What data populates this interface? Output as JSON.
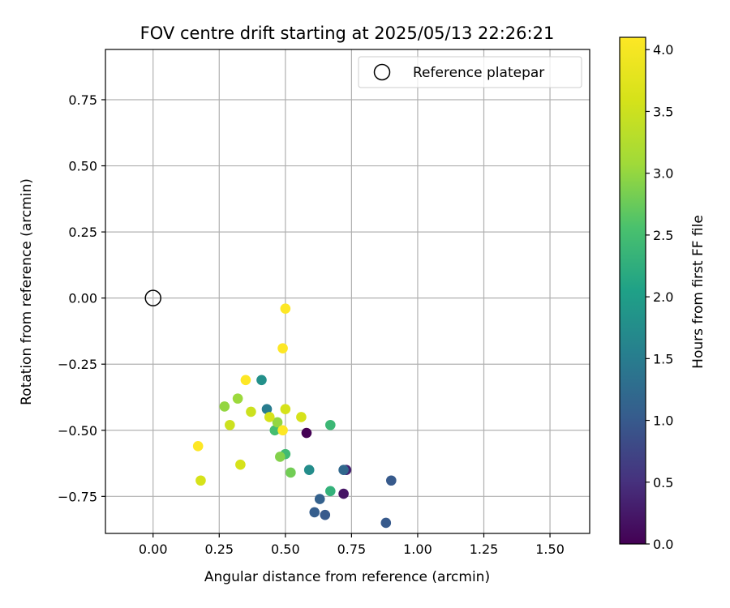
{
  "chart_data": {
    "type": "scatter",
    "title": "FOV centre drift starting at 2025/05/13 22:26:21",
    "xlabel": "Angular distance from reference (arcmin)",
    "ylabel": "Rotation from reference (arcmin)",
    "xlim": [
      -0.18,
      1.65
    ],
    "ylim": [
      -0.89,
      0.94
    ],
    "x_ticks": [
      "0.00",
      "0.25",
      "0.50",
      "0.75",
      "1.00",
      "1.25",
      "1.50"
    ],
    "y_ticks": [
      "0.75",
      "0.50",
      "0.25",
      "0.00",
      "−0.25",
      "−0.50",
      "−0.75"
    ],
    "grid": true,
    "legend": {
      "placement": "top-right",
      "entries": [
        "Reference platepar"
      ]
    },
    "reference": {
      "x": 0.0,
      "y": 0.0,
      "marker": "open-circle"
    },
    "colorbar": {
      "label": "Hours from first FF file",
      "colormap": "viridis",
      "range": [
        0.0,
        4.1
      ],
      "ticks": [
        "0.0",
        "0.5",
        "1.0",
        "1.5",
        "2.0",
        "2.5",
        "3.0",
        "3.5",
        "4.0"
      ]
    },
    "points": [
      {
        "x": 0.58,
        "y": -0.51,
        "t": 0.0
      },
      {
        "x": 0.72,
        "y": -0.74,
        "t": 0.2
      },
      {
        "x": 0.73,
        "y": -0.65,
        "t": 0.35
      },
      {
        "x": 0.65,
        "y": -0.82,
        "t": 1.0
      },
      {
        "x": 0.61,
        "y": -0.81,
        "t": 1.05
      },
      {
        "x": 0.63,
        "y": -0.76,
        "t": 1.1
      },
      {
        "x": 0.88,
        "y": -0.85,
        "t": 1.0
      },
      {
        "x": 0.9,
        "y": -0.69,
        "t": 1.0
      },
      {
        "x": 0.72,
        "y": -0.65,
        "t": 1.2
      },
      {
        "x": 0.43,
        "y": -0.42,
        "t": 1.5
      },
      {
        "x": 0.59,
        "y": -0.65,
        "t": 1.75
      },
      {
        "x": 0.41,
        "y": -0.31,
        "t": 1.8
      },
      {
        "x": 0.67,
        "y": -0.73,
        "t": 2.3
      },
      {
        "x": 0.67,
        "y": -0.48,
        "t": 2.4
      },
      {
        "x": 0.5,
        "y": -0.59,
        "t": 2.45
      },
      {
        "x": 0.46,
        "y": -0.5,
        "t": 2.5
      },
      {
        "x": 0.52,
        "y": -0.66,
        "t": 2.8
      },
      {
        "x": 0.48,
        "y": -0.6,
        "t": 2.9
      },
      {
        "x": 0.47,
        "y": -0.47,
        "t": 3.0
      },
      {
        "x": 0.27,
        "y": -0.41,
        "t": 3.0
      },
      {
        "x": 0.32,
        "y": -0.38,
        "t": 3.05
      },
      {
        "x": 0.29,
        "y": -0.48,
        "t": 3.5
      },
      {
        "x": 0.37,
        "y": -0.43,
        "t": 3.5
      },
      {
        "x": 0.44,
        "y": -0.45,
        "t": 3.6
      },
      {
        "x": 0.5,
        "y": -0.42,
        "t": 3.6
      },
      {
        "x": 0.56,
        "y": -0.45,
        "t": 3.6
      },
      {
        "x": 0.33,
        "y": -0.63,
        "t": 3.6
      },
      {
        "x": 0.18,
        "y": -0.69,
        "t": 3.6
      },
      {
        "x": 0.17,
        "y": -0.56,
        "t": 4.1
      },
      {
        "x": 0.35,
        "y": -0.31,
        "t": 4.1
      },
      {
        "x": 0.49,
        "y": -0.19,
        "t": 4.1
      },
      {
        "x": 0.5,
        "y": -0.04,
        "t": 4.1
      },
      {
        "x": 0.49,
        "y": -0.5,
        "t": 4.1
      }
    ]
  }
}
